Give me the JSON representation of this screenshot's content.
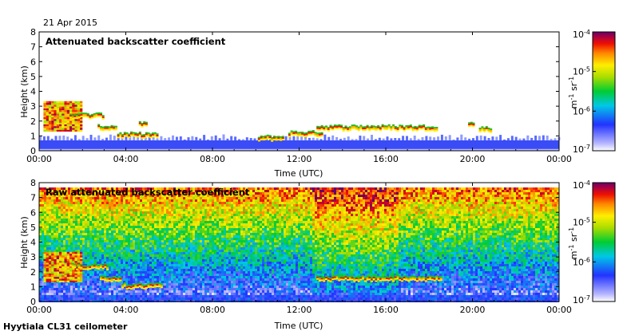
{
  "date_label": "21 Apr 2015",
  "footer": "Hyytiala CL31 ceilometer",
  "chart_data": [
    {
      "type": "heatmap",
      "title": "Attenuated backscatter coefficient",
      "xlabel": "Time (UTC)",
      "ylabel": "Height (km)",
      "x_ticks": [
        "00:00",
        "04:00",
        "08:00",
        "12:00",
        "16:00",
        "20:00",
        "00:00"
      ],
      "y_ticks": [
        "0",
        "1",
        "2",
        "3",
        "4",
        "5",
        "6",
        "7",
        "8"
      ],
      "xlim_hours": [
        0,
        24
      ],
      "ylim_km": [
        0,
        8
      ],
      "colorbar": {
        "scale": "log",
        "range": [
          1e-07,
          0.0001
        ],
        "ticks": [
          "10-7",
          "10-6",
          "10-5",
          "10-4"
        ],
        "unit_label": "m-1 sr-1"
      },
      "features": {
        "boundary_layer_top_km": 0.7,
        "low_cloud": {
          "hours": [
            0.2,
            2.0
          ],
          "base_km": 1.3,
          "top_km": 3.3
        },
        "cloud_layers": [
          {
            "hours": [
              1.4,
              3.0
            ],
            "height_km": 2.4
          },
          {
            "hours": [
              2.7,
              3.6
            ],
            "height_km": 1.6
          },
          {
            "hours": [
              3.6,
              5.4
            ],
            "height_km": 1.1
          },
          {
            "hours": [
              4.6,
              4.9
            ],
            "height_km": 1.8
          },
          {
            "hours": [
              10.1,
              11.2
            ],
            "height_km": 0.9
          },
          {
            "hours": [
              11.5,
              13.0
            ],
            "height_km": 1.2
          },
          {
            "hours": [
              12.8,
              18.4
            ],
            "height_km": 1.6
          },
          {
            "hours": [
              19.8,
              20.1
            ],
            "height_km": 1.8
          },
          {
            "hours": [
              20.3,
              20.9
            ],
            "height_km": 1.5
          }
        ]
      }
    },
    {
      "type": "heatmap",
      "title": "Raw attenuated backscatter coefficient",
      "xlabel": "Time (UTC)",
      "ylabel": "Height (km)",
      "x_ticks": [
        "00:00",
        "04:00",
        "08:00",
        "12:00",
        "16:00",
        "20:00",
        "00:00"
      ],
      "y_ticks": [
        "0",
        "1",
        "2",
        "3",
        "4",
        "5",
        "6",
        "7",
        "8"
      ],
      "xlim_hours": [
        0,
        24
      ],
      "ylim_km": [
        0,
        8
      ],
      "colorbar": {
        "scale": "log",
        "range": [
          1e-07,
          0.0001
        ],
        "ticks": [
          "10-7",
          "10-6",
          "10-5",
          "10-4"
        ],
        "unit_label": "m-1 sr-1"
      },
      "features": {
        "noise_top_km": 7.7,
        "daytime_noise_peak_hours": [
          12.5,
          16.5
        ],
        "low_cloud": {
          "hours": [
            0.2,
            2.0
          ],
          "base_km": 1.3,
          "top_km": 3.3
        },
        "cloud_layers": [
          {
            "hours": [
              1.5,
              3.2
            ],
            "height_km": 2.4
          },
          {
            "hours": [
              2.8,
              3.8
            ],
            "height_km": 1.6
          },
          {
            "hours": [
              3.8,
              5.6
            ],
            "height_km": 1.1
          },
          {
            "hours": [
              12.8,
              18.6
            ],
            "height_km": 1.6
          }
        ]
      }
    }
  ]
}
